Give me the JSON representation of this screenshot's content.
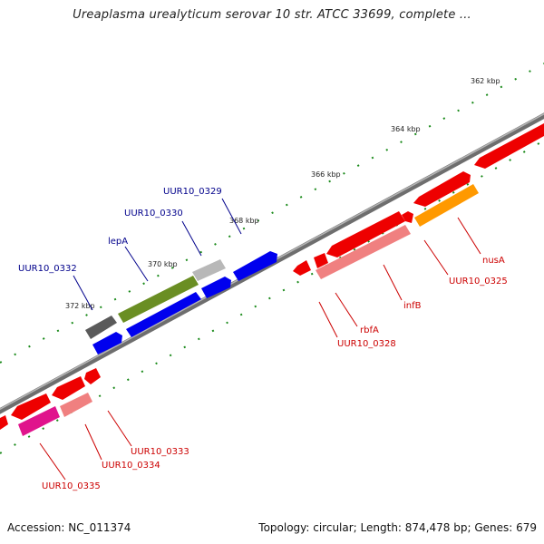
{
  "title": "Ureaplasma urealyticum serovar 10 str. ATCC 33699, complete ...",
  "colors": {
    "backbone": "#7d7d7d",
    "tick": "#1a8a1a",
    "label_forward": "#00008b",
    "label_reverse": "#cc0000"
  },
  "ticks": [
    "362 kbp",
    "364 kbp",
    "366 kbp",
    "368 kbp",
    "370 kbp",
    "372 kbp"
  ],
  "gene_labels_forward": [
    "UUR10_0329",
    "UUR10_0330",
    "lepA",
    "UUR10_0332"
  ],
  "gene_labels_reverse": [
    "nusA",
    "UUR10_0325",
    "infB",
    "rbfA",
    "UUR10_0328",
    "UUR10_0333",
    "UUR10_0334",
    "UUR10_0335"
  ],
  "footer": {
    "accession": "Accession: NC_011374",
    "summary": "Topology: circular; Length: 874,478 bp; Genes: 679"
  }
}
